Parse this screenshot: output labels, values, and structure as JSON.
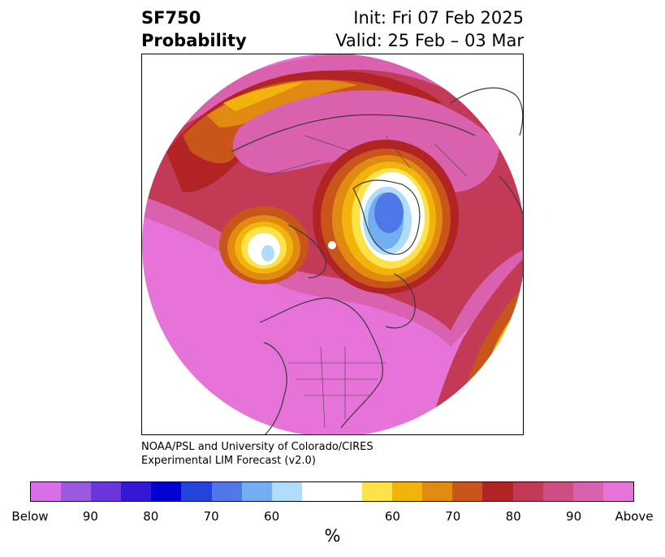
{
  "header": {
    "variable": "SF750",
    "field": "Probability",
    "init": "Init: Fri 07 Feb 2025",
    "valid": "Valid: 25 Feb – 03 Mar"
  },
  "credit": {
    "line1": "NOAA/PSL and University of Colorado/CIRES",
    "line2": "Experimental LIM Forecast (v2.0)"
  },
  "colorbar": {
    "colors": [
      "#d86fe6",
      "#9b59e0",
      "#6a35da",
      "#3418d6",
      "#0000d0",
      "#2244dc",
      "#4f77e8",
      "#74aef2",
      "#afdcfa",
      "#ffffff",
      "#ffffff",
      "#fde24a",
      "#f2b40a",
      "#e08a12",
      "#c8551a",
      "#b22424",
      "#c23a55",
      "#cd4f82",
      "#d961ae",
      "#e673d8"
    ],
    "tick_labels": [
      "Below",
      "90",
      "80",
      "70",
      "60",
      "60",
      "70",
      "80",
      "90",
      "Above"
    ],
    "unit": "%"
  },
  "map": {
    "projection": "north polar stereographic",
    "fill_colors": {
      "above_high": "#e673d8",
      "above_90": "#d961ae",
      "above_80": "#c23a55",
      "above_75": "#b22424",
      "above_70": "#c8551a",
      "above_65": "#e08a12",
      "above_60": "#f2b40a",
      "above_55": "#fde24a",
      "below_60": "#afdcfa",
      "below_70": "#74aef2",
      "below_80": "#4f77e8",
      "coastline": "#3a3a3a"
    }
  }
}
